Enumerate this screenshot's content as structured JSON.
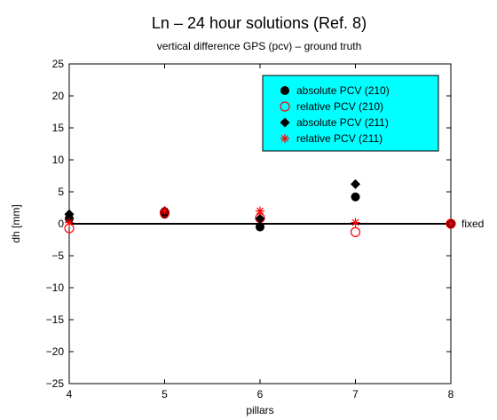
{
  "chart_data": {
    "type": "scatter",
    "title": "Ln – 24 hour solutions (Ref. 8)",
    "subtitle": "vertical difference GPS (pcv) – ground truth",
    "xlabel": "pillars",
    "ylabel": "dh [mm]",
    "xlim": [
      4,
      8
    ],
    "ylim": [
      -25,
      25
    ],
    "xticks": [
      "4",
      "5",
      "6",
      "7",
      "8"
    ],
    "yticks": [
      "−25",
      "−20",
      "−15",
      "−10",
      "−5",
      "0",
      "5",
      "10",
      "15",
      "20",
      "25"
    ],
    "annotation": "fixed",
    "legend_position": "top-right",
    "legend_background": "#00ffff",
    "series": [
      {
        "name": "absolute PCV (210)",
        "marker": "filled-circle",
        "color": "#000000",
        "x": [
          4,
          5,
          6,
          7,
          8
        ],
        "y": [
          0.8,
          1.5,
          -0.5,
          4.2,
          0
        ]
      },
      {
        "name": "relative PCV (210)",
        "marker": "open-circle",
        "color": "#ff0000",
        "x": [
          4,
          5,
          6,
          7,
          8
        ],
        "y": [
          -0.7,
          1.7,
          0.9,
          -1.3,
          0
        ]
      },
      {
        "name": "absolute PCV (211)",
        "marker": "filled-diamond",
        "color": "#000000",
        "x": [
          4,
          5,
          6,
          7,
          8
        ],
        "y": [
          1.5,
          2.0,
          0.8,
          6.2,
          0
        ]
      },
      {
        "name": "relative PCV (211)",
        "marker": "asterisk",
        "color": "#ff0000",
        "x": [
          4,
          5,
          6,
          7,
          8
        ],
        "y": [
          0.2,
          2.0,
          2.0,
          0.2,
          0
        ]
      }
    ]
  }
}
